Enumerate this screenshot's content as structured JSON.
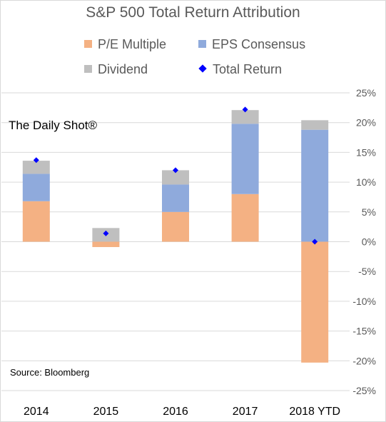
{
  "chart_data": {
    "type": "bar",
    "stacked": true,
    "title": "S&P 500 Total Return Attribution",
    "categories": [
      "2014",
      "2015",
      "2016",
      "2017",
      "2018 YTD"
    ],
    "series": [
      {
        "name": "P/E Multiple",
        "color": "#f4b183",
        "values": [
          6.8,
          -0.9,
          5.0,
          8.0,
          -20.3
        ]
      },
      {
        "name": "EPS Consensus",
        "color": "#8faadc",
        "values": [
          4.6,
          0.0,
          4.6,
          11.8,
          18.8
        ]
      },
      {
        "name": "Dividend",
        "color": "#bfbfbf",
        "values": [
          2.2,
          2.3,
          2.4,
          2.3,
          1.6
        ]
      }
    ],
    "markers": {
      "name": "Total Return",
      "color": "#0000ff",
      "values": [
        13.7,
        1.4,
        12.0,
        22.2,
        0.0
      ]
    },
    "ylim": [
      -25,
      25
    ],
    "yticks": [
      -25,
      -20,
      -15,
      -10,
      -5,
      0,
      5,
      10,
      15,
      20,
      25
    ],
    "ytick_labels": [
      "-25%",
      "-20%",
      "-15%",
      "-10%",
      "-5%",
      "0%",
      "5%",
      "10%",
      "15%",
      "20%",
      "25%"
    ],
    "grid": true,
    "legend_position": "top"
  },
  "watermark": "The Daily Shot®",
  "source": "Source: Bloomberg"
}
